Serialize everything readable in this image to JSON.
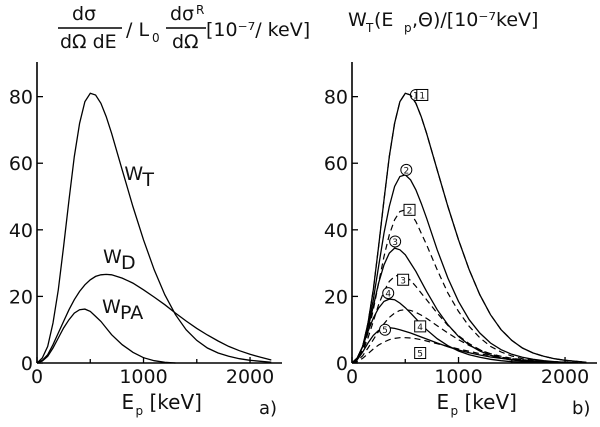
{
  "chart_data": [
    {
      "id": "a",
      "type": "line",
      "panel_label": "a)",
      "title_parts": {
        "frac1_num": "dσ",
        "frac1_den": "dΩ dE",
        "middle": "/ L",
        "middle_sub": "0",
        "frac2_num": "dσ",
        "frac2_num_sub": "R",
        "frac2_den": "dΩ",
        "unit": "[10⁻⁷/ keV]"
      },
      "xlabel": "E",
      "xlabel_sub": "p",
      "xlabel_unit": "[keV]",
      "xlim": [
        0,
        2300
      ],
      "ylim": [
        0,
        88
      ],
      "xticks": [
        0,
        1000,
        2000
      ],
      "xtick_labels": [
        "0",
        "1000",
        "2000"
      ],
      "yticks": [
        0,
        20,
        40,
        60,
        80
      ],
      "ytick_labels": [
        "0",
        "20",
        "40",
        "60",
        "80"
      ],
      "series": [
        {
          "label": "W",
          "label_sub": "T",
          "style": "solid",
          "label_at": [
            820,
            55
          ],
          "x": [
            0,
            50,
            100,
            150,
            200,
            250,
            300,
            350,
            400,
            450,
            500,
            550,
            600,
            650,
            700,
            800,
            900,
            1000,
            1100,
            1200,
            1300,
            1400,
            1500,
            1600,
            1700,
            1800,
            1900,
            2000,
            2100,
            2200
          ],
          "y": [
            0,
            1.5,
            5,
            12,
            22,
            35,
            49,
            62,
            72,
            78.5,
            81,
            80.5,
            78,
            74,
            69,
            58,
            47,
            37,
            28,
            20.5,
            14.5,
            10,
            6.8,
            4.5,
            3,
            2,
            1.3,
            0.8,
            0.5,
            0.2
          ]
        },
        {
          "label": "W",
          "label_sub": "D",
          "style": "solid",
          "label_at": [
            620,
            30
          ],
          "x": [
            0,
            50,
            100,
            150,
            200,
            250,
            300,
            350,
            400,
            450,
            500,
            550,
            600,
            650,
            700,
            800,
            900,
            1000,
            1100,
            1200,
            1300,
            1400,
            1500,
            1600,
            1700,
            1800,
            1900,
            2000,
            2100,
            2200
          ],
          "y": [
            0,
            0.8,
            2.5,
            5.5,
            9,
            12.5,
            16,
            19,
            21.5,
            23.5,
            25,
            26,
            26.5,
            26.6,
            26.5,
            25.5,
            24,
            22,
            19.8,
            17.5,
            15,
            12.6,
            10.4,
            8.4,
            6.6,
            5,
            3.7,
            2.6,
            1.7,
            0.9
          ]
        },
        {
          "label": "W",
          "label_sub": "PA",
          "style": "solid",
          "label_at": [
            610,
            15
          ],
          "x": [
            0,
            50,
            100,
            150,
            200,
            250,
            300,
            350,
            400,
            450,
            500,
            550,
            600,
            650,
            700,
            800,
            900,
            1000,
            1100,
            1200,
            1300
          ],
          "y": [
            0,
            0.6,
            2,
            4.5,
            7.5,
            10.5,
            13,
            15,
            16,
            16.2,
            15.5,
            14,
            12.5,
            10.5,
            8.5,
            5.5,
            3.2,
            1.6,
            0.7,
            0.2,
            0
          ]
        }
      ]
    },
    {
      "id": "b",
      "type": "line",
      "panel_label": "b)",
      "title_parts": {
        "lead": "W",
        "lead_sub": "T",
        "rest": " (E",
        "rest_sub": "p",
        "tail": ",Θ)/[10⁻⁷keV]"
      },
      "xlabel": "E",
      "xlabel_sub": "p",
      "xlabel_unit": "[keV]",
      "xlim": [
        0,
        2300
      ],
      "ylim": [
        0,
        88
      ],
      "xticks": [
        0,
        1000,
        2000
      ],
      "xtick_labels": [
        "0",
        "1000",
        "2000"
      ],
      "yticks": [
        0,
        20,
        40,
        60,
        80
      ],
      "ytick_labels": [
        "0",
        "20",
        "40",
        "60",
        "80"
      ],
      "series": [
        {
          "label": "1",
          "style": "solid",
          "marker": "circle",
          "marker_at": [
            600,
            80.5
          ],
          "x": [
            0,
            50,
            100,
            150,
            200,
            250,
            300,
            350,
            400,
            450,
            500,
            550,
            600,
            650,
            700,
            800,
            900,
            1000,
            1100,
            1200,
            1300,
            1400,
            1500,
            1600,
            1700,
            1800,
            1900,
            2000,
            2100,
            2200
          ],
          "y": [
            0,
            1.5,
            5,
            12,
            22,
            35,
            49,
            62,
            72,
            78.5,
            81,
            80.5,
            78,
            74,
            69,
            58,
            47,
            37,
            28,
            20.5,
            14.5,
            10,
            6.8,
            4.5,
            3,
            2,
            1.3,
            0.8,
            0.5,
            0.2
          ]
        },
        {
          "label": "1",
          "style": "dashed",
          "marker": "square",
          "marker_at": [
            660,
            80.5
          ],
          "x": [
            0,
            50,
            100,
            150,
            200,
            250,
            300,
            350,
            400,
            450,
            500,
            550,
            600,
            650,
            700,
            800,
            900,
            1000,
            1100,
            1200,
            1300,
            1400,
            1500,
            1600,
            1700,
            1800,
            1900,
            2000,
            2100,
            2200
          ],
          "y": [
            0,
            1.5,
            5,
            12,
            22,
            35,
            49,
            62,
            72,
            78.5,
            81,
            80.5,
            78,
            74,
            69,
            58,
            47,
            37,
            28,
            20.5,
            14.5,
            10,
            6.8,
            4.5,
            3,
            2,
            1.3,
            0.8,
            0.5,
            0.2
          ]
        },
        {
          "label": "2",
          "style": "solid",
          "marker": "circle",
          "marker_at": [
            510,
            58
          ],
          "x": [
            0,
            50,
            100,
            150,
            200,
            250,
            300,
            350,
            400,
            450,
            500,
            550,
            600,
            650,
            700,
            800,
            900,
            1000,
            1100,
            1200,
            1300,
            1400,
            1500,
            1600,
            1700,
            1800,
            1900,
            2000
          ],
          "y": [
            0,
            1.5,
            5,
            11,
            19,
            29,
            39,
            47,
            53,
            56,
            56.5,
            55,
            52,
            48,
            43.5,
            34,
            25.5,
            18.5,
            13,
            9,
            6,
            4,
            2.6,
            1.7,
            1.1,
            0.7,
            0.4,
            0.2
          ]
        },
        {
          "label": "2",
          "style": "dashed",
          "marker": "square",
          "marker_at": [
            540,
            46
          ],
          "x": [
            0,
            50,
            100,
            150,
            200,
            250,
            300,
            350,
            400,
            450,
            500,
            550,
            600,
            650,
            700,
            800,
            900,
            1000,
            1100,
            1200,
            1300,
            1400,
            1500,
            1600,
            1700,
            1800,
            1900,
            2000
          ],
          "y": [
            0,
            1.2,
            4,
            9,
            16,
            24,
            32,
            38.5,
            43,
            45.5,
            46,
            45,
            42.5,
            39,
            35.5,
            28,
            21,
            15.5,
            11,
            7.6,
            5,
            3.3,
            2.1,
            1.3,
            0.8,
            0.5,
            0.3,
            0.1
          ]
        },
        {
          "label": "3",
          "style": "solid",
          "marker": "circle",
          "marker_at": [
            405,
            36.5
          ],
          "x": [
            0,
            50,
            100,
            150,
            200,
            250,
            300,
            350,
            400,
            450,
            500,
            550,
            600,
            650,
            700,
            800,
            900,
            1000,
            1100,
            1200,
            1300,
            1400,
            1500,
            1600,
            1700,
            1800,
            1900
          ],
          "y": [
            0,
            1.5,
            5,
            10.5,
            17,
            24,
            29.5,
            33,
            34.5,
            34,
            32.5,
            30,
            27.5,
            24.5,
            21.5,
            16,
            11.5,
            8,
            5.4,
            3.6,
            2.3,
            1.5,
            0.9,
            0.6,
            0.4,
            0.2,
            0.1
          ]
        },
        {
          "label": "3",
          "style": "dashed",
          "marker": "square",
          "marker_at": [
            480,
            25
          ],
          "x": [
            0,
            50,
            100,
            150,
            200,
            250,
            300,
            350,
            400,
            450,
            500,
            550,
            600,
            650,
            700,
            800,
            900,
            1000,
            1100,
            1200,
            1300,
            1400,
            1500,
            1600,
            1700,
            1800,
            1900
          ],
          "y": [
            0,
            1,
            3.5,
            7.5,
            12.5,
            17.5,
            21.5,
            24.5,
            26,
            26.5,
            26,
            24.8,
            23,
            21,
            19,
            15,
            11.3,
            8.2,
            5.8,
            4,
            2.7,
            1.8,
            1.1,
            0.7,
            0.4,
            0.2,
            0.1
          ]
        },
        {
          "label": "4",
          "style": "solid",
          "marker": "circle",
          "marker_at": [
            340,
            21
          ],
          "x": [
            0,
            50,
            100,
            150,
            200,
            250,
            300,
            350,
            400,
            450,
            500,
            550,
            600,
            650,
            700,
            800,
            900,
            1000,
            1100,
            1200,
            1300,
            1400,
            1500,
            1600,
            1700,
            1800
          ],
          "y": [
            0,
            1.5,
            5,
            9.5,
            13.5,
            16.5,
            18.5,
            19.2,
            19,
            18,
            16.6,
            15,
            13.3,
            11.6,
            10,
            7.3,
            5.2,
            3.6,
            2.5,
            1.7,
            1.1,
            0.7,
            0.4,
            0.3,
            0.2,
            0.1
          ]
        },
        {
          "label": "4",
          "style": "dashed",
          "marker": "square",
          "marker_at": [
            640,
            11
          ],
          "x": [
            0,
            50,
            100,
            150,
            200,
            250,
            300,
            350,
            400,
            450,
            500,
            550,
            600,
            650,
            700,
            800,
            900,
            1000,
            1100,
            1200,
            1300,
            1400,
            1500,
            1600,
            1700,
            1800,
            1900,
            2000
          ],
          "y": [
            0,
            0.7,
            2.2,
            4.5,
            7,
            9.5,
            11.8,
            13.7,
            15,
            15.8,
            16,
            15.8,
            15.2,
            14.4,
            13.4,
            11.2,
            9,
            7,
            5.3,
            3.9,
            2.8,
            2,
            1.4,
            1,
            0.7,
            0.5,
            0.3,
            0.2
          ]
        },
        {
          "label": "5",
          "style": "solid",
          "marker": "circle",
          "marker_at": [
            310,
            10
          ],
          "x": [
            0,
            50,
            100,
            150,
            200,
            250,
            300,
            350,
            400,
            450,
            500,
            550,
            600,
            650,
            700,
            800,
            900,
            1000,
            1100,
            1200,
            1300,
            1400,
            1500,
            1600,
            1700,
            1800,
            1900,
            2000,
            2100
          ],
          "y": [
            0,
            1,
            3.3,
            6,
            8.3,
            9.8,
            10.5,
            10.6,
            10.4,
            10,
            9.5,
            9,
            8.4,
            7.8,
            7.2,
            6,
            4.9,
            3.9,
            3.1,
            2.4,
            1.8,
            1.4,
            1,
            0.8,
            0.6,
            0.4,
            0.3,
            0.2,
            0.1
          ]
        },
        {
          "label": "5",
          "style": "dashed",
          "marker": "square",
          "marker_at": [
            640,
            3
          ],
          "x": [
            0,
            50,
            100,
            150,
            200,
            250,
            300,
            350,
            400,
            450,
            500,
            550,
            600,
            650,
            700,
            800,
            900,
            1000,
            1100,
            1200,
            1300,
            1400,
            1500,
            1600,
            1700,
            1800,
            1900,
            2000,
            2100,
            2200
          ],
          "y": [
            0,
            0.4,
            1.4,
            2.8,
            4.2,
            5.4,
            6.3,
            7,
            7.4,
            7.6,
            7.6,
            7.5,
            7.3,
            7,
            6.6,
            5.8,
            5,
            4.2,
            3.5,
            2.8,
            2.2,
            1.7,
            1.3,
            1,
            0.7,
            0.5,
            0.4,
            0.3,
            0.2,
            0.1
          ]
        }
      ]
    }
  ]
}
